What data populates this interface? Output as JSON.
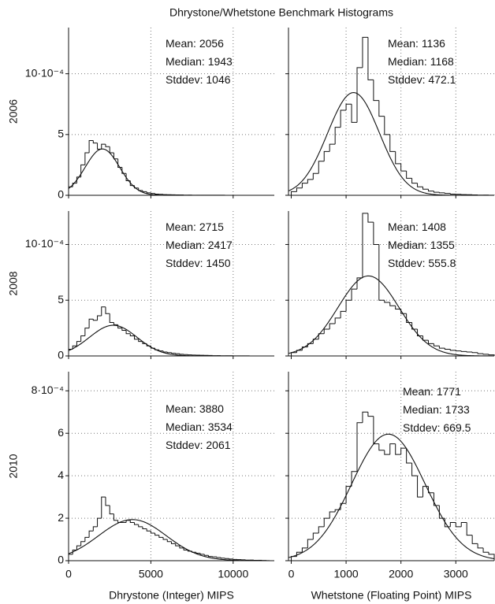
{
  "title": "Dhrystone/Whetstone Benchmark Histograms",
  "chart_data": [
    {
      "type": "histogram",
      "ylabel": "2006",
      "bins": [
        0,
        250,
        500,
        750,
        1000,
        1250,
        1500,
        1750,
        2000,
        2250,
        2500,
        2750,
        3000,
        3250,
        3500,
        3750,
        4000,
        4250,
        4500,
        4750,
        5000,
        5250,
        5500,
        5750,
        6000,
        6250,
        6500,
        6750,
        7000,
        7250,
        7500,
        7750,
        8000,
        8250,
        8500,
        8750,
        9000,
        9250,
        9500,
        9750,
        10000,
        10250,
        10500,
        10750,
        11000,
        11250,
        11500,
        11750,
        12000
      ],
      "counts": [
        7e-05,
        0.0001,
        0.00015,
        0.00025,
        0.00035,
        0.00045,
        0.00043,
        0.00038,
        0.00042,
        0.0004,
        0.00035,
        0.0003,
        0.00023,
        0.00018,
        0.00012,
        8e-05,
        6e-05,
        4e-05,
        3e-05,
        2e-05,
        1.5e-05,
        1e-05,
        8e-06,
        6e-06,
        5e-06,
        4e-06,
        3e-06,
        3e-06,
        2e-06,
        2e-06,
        1e-06,
        1e-06,
        1e-06,
        1e-06,
        1e-06,
        1e-06,
        1e-06,
        1e-06,
        0,
        0,
        0,
        0,
        0,
        0,
        0,
        0,
        0,
        0
      ],
      "stats": [
        {
          "label": "Mean:",
          "value": 2056
        },
        {
          "label": "Median:",
          "value": 1943
        },
        {
          "label": "Stddev:",
          "value": 1046
        }
      ],
      "xlim": [
        0,
        12500
      ],
      "xticks": [
        0,
        5000,
        10000
      ],
      "show_xtick_labels": false,
      "ylim": [
        0,
        0.00138
      ],
      "yticks": [
        0,
        {
          "value": 0.0005,
          "label": "5"
        },
        {
          "value": 0.001,
          "label": "10·10⁻⁴"
        }
      ],
      "show_ytick_labels": true,
      "grid": true
    },
    {
      "type": "histogram",
      "bins": [
        0,
        100,
        200,
        300,
        400,
        500,
        600,
        700,
        800,
        900,
        1000,
        1100,
        1200,
        1300,
        1400,
        1500,
        1600,
        1700,
        1800,
        1900,
        2000,
        2100,
        2200,
        2300,
        2400,
        2500,
        2600,
        2700,
        2800,
        2900,
        3000,
        3100,
        3200,
        3300,
        3400,
        3500,
        3600,
        3700
      ],
      "counts": [
        3e-05,
        6e-05,
        0.0001,
        0.00013,
        0.00018,
        0.00028,
        0.00036,
        0.00042,
        0.00056,
        0.0007,
        0.00075,
        0.0006,
        0.00105,
        0.0013,
        0.00095,
        0.00078,
        0.00065,
        0.0005,
        0.00036,
        0.00026,
        0.0002,
        0.00014,
        0.0001,
        7e-05,
        5e-05,
        3.5e-05,
        2.5e-05,
        2e-05,
        1.5e-05,
        1e-05,
        8e-06,
        6e-06,
        5e-06,
        3e-06,
        2e-06,
        2e-06,
        1e-06
      ],
      "stats": [
        {
          "label": "Mean:",
          "value": 1136
        },
        {
          "label": "Median:",
          "value": 1168
        },
        {
          "label": "Stddev:",
          "value": 472.1
        }
      ],
      "xlim": [
        -50,
        3700
      ],
      "xticks": [
        0,
        1000,
        2000,
        3000
      ],
      "show_xtick_labels": false,
      "ylim": [
        0,
        0.00138
      ],
      "yticks": [
        0,
        0.0005,
        0.001
      ],
      "show_ytick_labels": false,
      "grid": true
    },
    {
      "type": "histogram",
      "ylabel": "2008",
      "bins": [
        0,
        250,
        500,
        750,
        1000,
        1250,
        1500,
        1750,
        2000,
        2250,
        2500,
        2750,
        3000,
        3250,
        3500,
        3750,
        4000,
        4250,
        4500,
        4750,
        5000,
        5250,
        5500,
        5750,
        6000,
        6250,
        6500,
        6750,
        7000,
        7250,
        7500,
        7750,
        8000,
        8250,
        8500,
        8750,
        9000,
        9250,
        9500,
        9750,
        10000,
        10250,
        10500,
        10750,
        11000,
        11250,
        11500,
        11750,
        12000
      ],
      "counts": [
        6e-05,
        9e-05,
        0.00013,
        0.00018,
        0.00025,
        0.00033,
        0.00032,
        0.00036,
        0.00044,
        0.00038,
        0.0003,
        0.00028,
        0.00025,
        0.00023,
        0.0002,
        0.00018,
        0.00015,
        0.00013,
        0.00011,
        9e-05,
        7e-05,
        5.5e-05,
        4.5e-05,
        3.5e-05,
        3e-05,
        2.5e-05,
        2e-05,
        1.5e-05,
        1.2e-05,
        1e-05,
        8e-06,
        7e-06,
        6e-06,
        5e-06,
        4e-06,
        3e-06,
        3e-06,
        2e-06,
        2e-06,
        2e-06,
        1e-06,
        1e-06,
        1e-06,
        1e-06,
        0,
        0,
        0,
        0
      ],
      "stats": [
        {
          "label": "Mean:",
          "value": 2715
        },
        {
          "label": "Median:",
          "value": 2417
        },
        {
          "label": "Stddev:",
          "value": 1450
        }
      ],
      "xlim": [
        0,
        12500
      ],
      "xticks": [
        0,
        5000,
        10000
      ],
      "show_xtick_labels": false,
      "ylim": [
        0,
        0.0013
      ],
      "yticks": [
        0,
        {
          "value": 0.0005,
          "label": "5"
        },
        {
          "value": 0.001,
          "label": "10·10⁻⁴"
        }
      ],
      "show_ytick_labels": true,
      "grid": true
    },
    {
      "type": "histogram",
      "bins": [
        0,
        100,
        200,
        300,
        400,
        500,
        600,
        700,
        800,
        900,
        1000,
        1100,
        1200,
        1300,
        1400,
        1500,
        1600,
        1700,
        1800,
        1900,
        2000,
        2100,
        2200,
        2300,
        2400,
        2500,
        2600,
        2700,
        2800,
        2900,
        3000,
        3100,
        3200,
        3300,
        3400,
        3500,
        3600,
        3700
      ],
      "counts": [
        3e-05,
        5e-05,
        8e-05,
        0.00011,
        0.00015,
        0.0002,
        0.00024,
        0.00029,
        0.00034,
        0.0004,
        0.0005,
        0.0006,
        0.0007,
        0.00128,
        0.0012,
        0.001,
        0.0005,
        0.00048,
        0.00045,
        0.00042,
        0.00038,
        0.0003,
        0.00024,
        0.00018,
        0.00014,
        0.00011,
        9e-05,
        7e-05,
        6e-05,
        5e-05,
        4.5e-05,
        4e-05,
        3.5e-05,
        3e-05,
        2e-05,
        1.5e-05,
        1e-05
      ],
      "stats": [
        {
          "label": "Mean:",
          "value": 1408
        },
        {
          "label": "Median:",
          "value": 1355
        },
        {
          "label": "Stddev:",
          "value": 555.8
        }
      ],
      "xlim": [
        -50,
        3700
      ],
      "xticks": [
        0,
        1000,
        2000,
        3000
      ],
      "show_xtick_labels": false,
      "ylim": [
        0,
        0.0013
      ],
      "yticks": [
        0,
        0.0005,
        0.001
      ],
      "show_ytick_labels": false,
      "grid": true
    },
    {
      "type": "histogram",
      "ylabel": "2010",
      "xlabel": "Dhrystone (Integer) MIPS",
      "bins": [
        0,
        250,
        500,
        750,
        1000,
        1250,
        1500,
        1750,
        2000,
        2250,
        2500,
        2750,
        3000,
        3250,
        3500,
        3750,
        4000,
        4250,
        4500,
        4750,
        5000,
        5250,
        5500,
        5750,
        6000,
        6250,
        6500,
        6750,
        7000,
        7250,
        7500,
        7750,
        8000,
        8250,
        8500,
        8750,
        9000,
        9250,
        9500,
        9750,
        10000,
        10250,
        10500,
        10750,
        11000,
        11250,
        11500,
        11750,
        12000
      ],
      "counts": [
        3e-05,
        5e-05,
        7e-05,
        9e-05,
        0.00011,
        0.00014,
        0.00016,
        0.0002,
        0.0003,
        0.00026,
        0.00022,
        0.00019,
        0.00018,
        0.00018,
        0.00019,
        0.00018,
        0.00017,
        0.00016,
        0.00015,
        0.00014,
        0.00013,
        0.00012,
        0.00011,
        0.0001,
        9e-05,
        8e-05,
        7e-05,
        6e-05,
        5e-05,
        4.5e-05,
        4e-05,
        3.5e-05,
        3e-05,
        2.5e-05,
        2e-05,
        1.8e-05,
        1.5e-05,
        1.2e-05,
        1e-05,
        8e-06,
        6e-06,
        5e-06,
        4e-06,
        3e-06,
        3e-06,
        2e-06,
        2e-06,
        1e-06
      ],
      "stats": [
        {
          "label": "Mean:",
          "value": 3880
        },
        {
          "label": "Median:",
          "value": 3534
        },
        {
          "label": "Stddev:",
          "value": 2061
        }
      ],
      "xlim": [
        0,
        12500
      ],
      "xticks": [
        0,
        5000,
        10000
      ],
      "show_xtick_labels": true,
      "ylim": [
        0,
        0.00089
      ],
      "yticks": [
        0,
        {
          "value": 0.0002,
          "label": "2"
        },
        {
          "value": 0.0004,
          "label": "4"
        },
        {
          "value": 0.0006,
          "label": "6"
        },
        {
          "value": 0.0008,
          "label": "8·10⁻⁴"
        }
      ],
      "show_ytick_labels": true,
      "grid": true
    },
    {
      "type": "histogram",
      "xlabel": "Whetstone (Floating Point) MIPS",
      "bins": [
        0,
        100,
        200,
        300,
        400,
        500,
        600,
        700,
        800,
        900,
        1000,
        1100,
        1200,
        1300,
        1400,
        1500,
        1600,
        1700,
        1800,
        1900,
        2000,
        2100,
        2200,
        2300,
        2400,
        2500,
        2600,
        2700,
        2800,
        2900,
        3000,
        3100,
        3200,
        3300,
        3400,
        3500,
        3600,
        3700
      ],
      "counts": [
        2e-05,
        4e-05,
        6e-05,
        0.0001,
        0.00013,
        0.00016,
        0.0002,
        0.00023,
        0.00024,
        0.00027,
        0.00035,
        0.00042,
        0.00065,
        0.0007,
        0.00068,
        0.00055,
        0.00052,
        0.0005,
        0.00055,
        0.0005,
        0.00053,
        0.00046,
        0.0004,
        0.0003,
        0.00035,
        0.00032,
        0.00026,
        0.0002,
        0.00016,
        0.00018,
        0.00016,
        0.00018,
        0.00012,
        8e-05,
        6e-05,
        4e-05,
        3e-05
      ],
      "stats": [
        {
          "label": "Mean:",
          "value": 1771
        },
        {
          "label": "Median:",
          "value": 1733
        },
        {
          "label": "Stddev:",
          "value": 669.5
        }
      ],
      "xlim": [
        -50,
        3700
      ],
      "xticks": [
        0,
        1000,
        2000,
        3000
      ],
      "show_xtick_labels": true,
      "ylim": [
        0,
        0.00089
      ],
      "yticks": [
        0,
        0.0002,
        0.0004,
        0.0006,
        0.0008
      ],
      "show_ytick_labels": false,
      "grid": true
    }
  ]
}
